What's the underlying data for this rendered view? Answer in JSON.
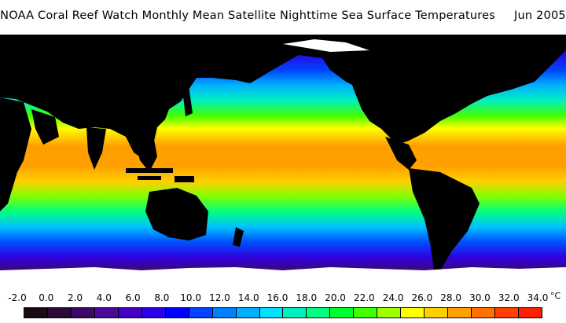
{
  "title": "NOAA Coral Reef Watch Monthly Mean Satellite Nighttime Sea Surface Temperatures     Jun 2005",
  "colorbar": {
    "ticks": [
      "-2.0",
      "0.0",
      "2.0",
      "4.0",
      "6.0",
      "8.0",
      "10.0",
      "12.0",
      "14.0",
      "16.0",
      "18.0",
      "20.0",
      "22.0",
      "24.0",
      "26.0",
      "28.0",
      "30.0",
      "32.0",
      "34.0"
    ],
    "unit": "°C",
    "colors": [
      "#1a0a14",
      "#2b0a3a",
      "#3a0a66",
      "#4a0a99",
      "#4400c4",
      "#2a00e6",
      "#0000ff",
      "#0044ff",
      "#0080ff",
      "#00b0ff",
      "#00e0ff",
      "#00f0c0",
      "#00ff80",
      "#00ff30",
      "#40ff00",
      "#a0ff00",
      "#ffff00",
      "#ffd000",
      "#ffa000",
      "#ff7000",
      "#ff4000",
      "#ff2000"
    ]
  },
  "map_colors": {
    "land": "#000000",
    "ice": "#ffffff"
  }
}
